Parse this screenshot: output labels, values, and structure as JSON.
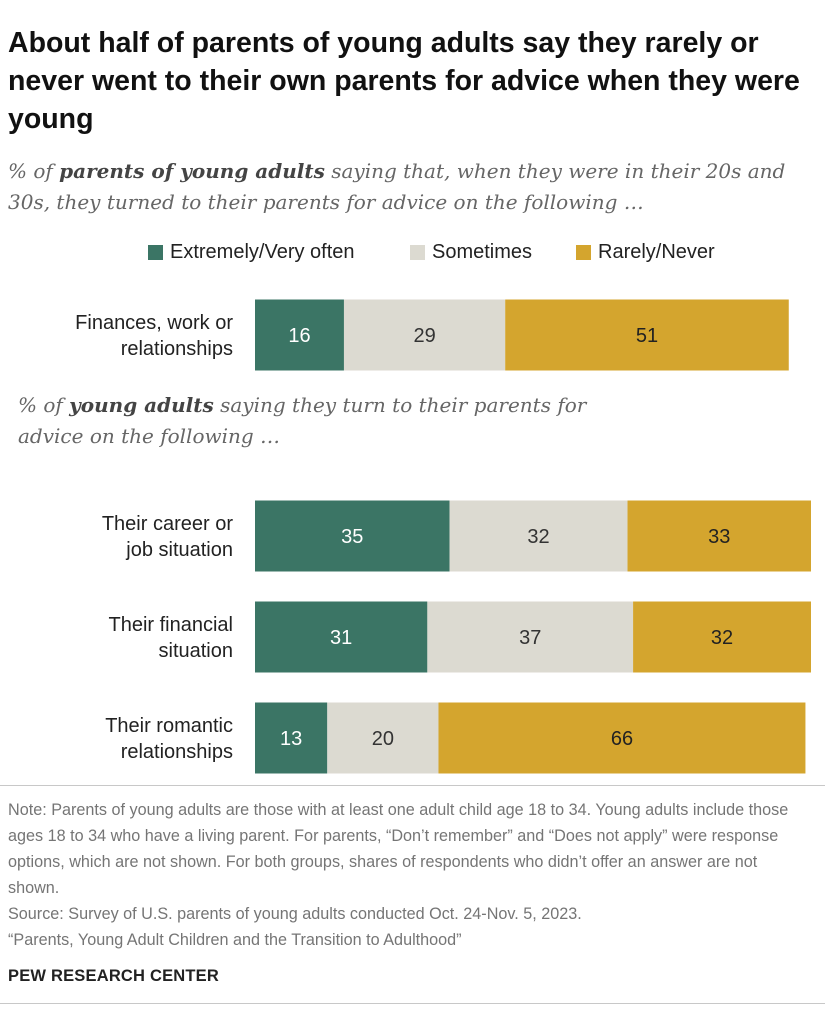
{
  "title": "About half of parents of young adults say they rarely or never went to their own parents for advice when they were young",
  "subtitle1": {
    "pre": "% of ",
    "bold": "parents of young adults",
    "post": " saying that, when they were in their 20s and 30s, they turned to their parents for advice on the following …"
  },
  "subtitle2": {
    "pre": "% of ",
    "bold": "young adults",
    "post": " saying they turn to their parents for advice on the following …"
  },
  "colors": {
    "often": "#3b7565",
    "sometimes": "#dcdad1",
    "rarely": "#d4a52e"
  },
  "chart_data": {
    "type": "bar",
    "orientation": "horizontal",
    "stacked": true,
    "legend": [
      "Extremely/Very often",
      "Sometimes",
      "Rarely/Never"
    ],
    "panels": [
      {
        "categories": [
          [
            "Finances, work or",
            "relationships"
          ]
        ],
        "series": [
          {
            "name": "Extremely/Very often",
            "values": [
              16
            ]
          },
          {
            "name": "Sometimes",
            "values": [
              29
            ]
          },
          {
            "name": "Rarely/Never",
            "values": [
              51
            ]
          }
        ]
      },
      {
        "categories": [
          [
            "Their career or",
            "job situation"
          ],
          [
            "Their financial",
            "situation"
          ],
          [
            "Their romantic",
            "relationships"
          ]
        ],
        "series": [
          {
            "name": "Extremely/Very often",
            "values": [
              35,
              31,
              13
            ]
          },
          {
            "name": "Sometimes",
            "values": [
              32,
              37,
              20
            ]
          },
          {
            "name": "Rarely/Never",
            "values": [
              33,
              32,
              66
            ]
          }
        ]
      }
    ]
  },
  "note": {
    "note_text": "Note: Parents of young adults are those with at least one adult child age 18 to 34. Young adults include those ages 18 to 34 who have a living parent. For parents, “Don’t remember” and “Does not apply” were response options, which are not shown. For both groups, shares of respondents who didn’t offer an answer are not shown.",
    "source": "Source: Survey of U.S. parents of young adults conducted Oct. 24-Nov. 5, 2023.",
    "report": "“Parents, Young Adult Children and the Transition to Adulthood”"
  },
  "org": "PEW RESEARCH CENTER"
}
